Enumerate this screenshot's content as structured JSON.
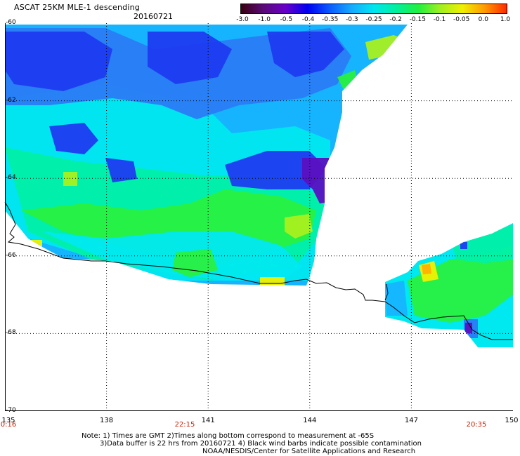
{
  "header": {
    "title": "ASCAT 25KM MLE-1 descending",
    "date": "20160721"
  },
  "colorbar": {
    "tick_labels": [
      "-3.0",
      "-1.0",
      "-0.5",
      "-0.4",
      "-0.35",
      "-0.3",
      "-0.25",
      "-0.2",
      "-0.15",
      "-0.1",
      "-0.05",
      "0.0",
      "1.0"
    ],
    "colors": [
      "#3a0010",
      "#5a0a78",
      "#6a00c8",
      "#0000f0",
      "#0a5aff",
      "#16aaff",
      "#00e6f0",
      "#00f0a0",
      "#20f040",
      "#a0f020",
      "#f0f000",
      "#ff9a00",
      "#ff2a00"
    ]
  },
  "map": {
    "lat_labels": [
      "-60",
      "-62",
      "-64",
      "-66",
      "-68",
      "-70"
    ],
    "lon_labels": [
      "135",
      "138",
      "141",
      "144",
      "147",
      "150"
    ],
    "time_labels": [
      "0:16",
      "22:15",
      "20:35"
    ],
    "colors": {
      "deep_blue": "#1e3cf0",
      "medium_blue": "#2a7cf5",
      "light_blue": "#16b4ff",
      "cyan": "#00e8f0",
      "aqua_green": "#00f0a8",
      "green": "#28f040",
      "yellow_green": "#a8f020",
      "yellow": "#f0f000",
      "orange": "#ffb000",
      "purple": "#5a10c0",
      "coastline": "#000000",
      "grid": "#000000"
    }
  },
  "notes": {
    "line1": "Note: 1) Times are GMT 2)Times along bottom correspond to measurement at -65S",
    "line2": "3)Data buffer is 22 hrs from 20160721 4) Black wind barbs indicate possible contamination",
    "line3": "NOAA/NESDIS/Center for Satellite Applications and Research"
  }
}
